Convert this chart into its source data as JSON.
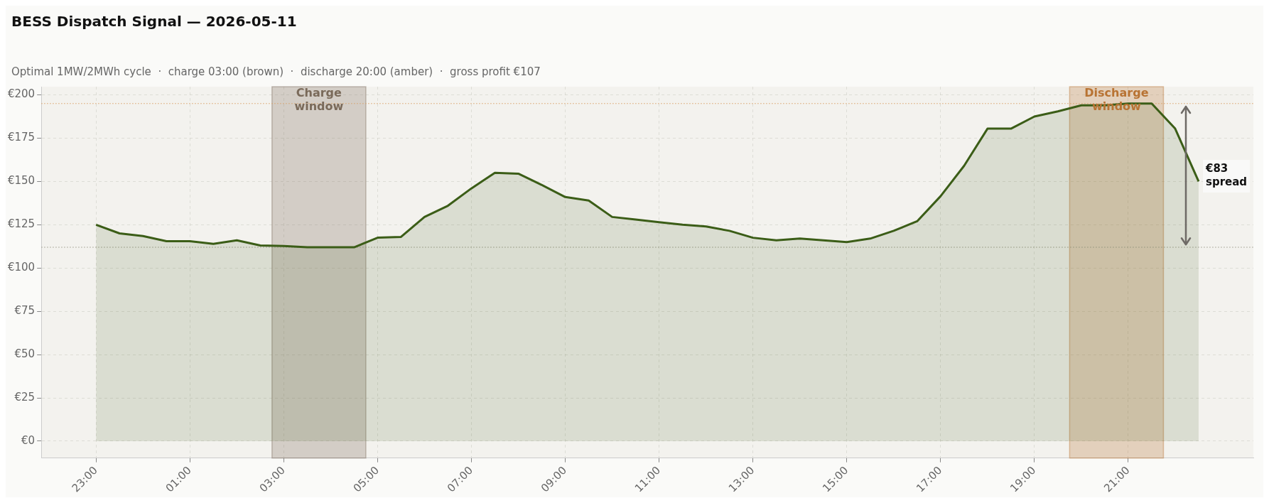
{
  "chart_data": {
    "type": "area",
    "title": "BESS Dispatch Signal — 2026-05-11",
    "subtitle": "Optimal 1MW/2MWh cycle  ·  charge 03:00 (brown)  ·  discharge 20:00 (amber)  ·  gross profit €107",
    "x": [
      "2026-05-10T23:00",
      "2026-05-10T23:30",
      "2026-05-11T00:00",
      "2026-05-11T00:30",
      "2026-05-11T01:00",
      "2026-05-11T01:30",
      "2026-05-11T02:00",
      "2026-05-11T02:30",
      "2026-05-11T03:00",
      "2026-05-11T03:30",
      "2026-05-11T04:00",
      "2026-05-11T04:30",
      "2026-05-11T05:00",
      "2026-05-11T05:30",
      "2026-05-11T06:00",
      "2026-05-11T06:30",
      "2026-05-11T07:00",
      "2026-05-11T07:30",
      "2026-05-11T08:00",
      "2026-05-11T08:30",
      "2026-05-11T09:00",
      "2026-05-11T09:30",
      "2026-05-11T10:00",
      "2026-05-11T10:30",
      "2026-05-11T11:00",
      "2026-05-11T11:30",
      "2026-05-11T12:00",
      "2026-05-11T12:30",
      "2026-05-11T13:00",
      "2026-05-11T13:30",
      "2026-05-11T14:00",
      "2026-05-11T14:30",
      "2026-05-11T15:00",
      "2026-05-11T15:30",
      "2026-05-11T16:00",
      "2026-05-11T16:30",
      "2026-05-11T17:00",
      "2026-05-11T17:30",
      "2026-05-11T18:00",
      "2026-05-11T18:30",
      "2026-05-11T19:00",
      "2026-05-11T19:30",
      "2026-05-11T20:00",
      "2026-05-11T20:30",
      "2026-05-11T21:00",
      "2026-05-11T21:30",
      "2026-05-11T22:00",
      "2026-05-11T22:30"
    ],
    "series": [
      {
        "color": "#3b5d17",
        "values": [
          125,
          120,
          118.5,
          115.5,
          115.5,
          114,
          116,
          113,
          112.7,
          112,
          112,
          112,
          117.5,
          118,
          129.5,
          136,
          146,
          155,
          154.5,
          148,
          141,
          139,
          129.5,
          128,
          126.5,
          125,
          124,
          121.5,
          117.5,
          116,
          117,
          116,
          115,
          117,
          121.5,
          127,
          141.5,
          159,
          180.5,
          180.5,
          187.5,
          190.5,
          194,
          194,
          195,
          195,
          180.5,
          150
        ]
      }
    ],
    "xlim": [
      "2026-05-10T21:50",
      "2026-05-11T23:40"
    ],
    "ylim": [
      -9.75,
      204.75
    ],
    "xticks": [
      {
        "value": "2026-05-10T23:00",
        "label": "23:00"
      },
      {
        "value": "2026-05-11T01:00",
        "label": "01:00"
      },
      {
        "value": "2026-05-11T03:00",
        "label": "03:00"
      },
      {
        "value": "2026-05-11T05:00",
        "label": "05:00"
      },
      {
        "value": "2026-05-11T07:00",
        "label": "07:00"
      },
      {
        "value": "2026-05-11T09:00",
        "label": "09:00"
      },
      {
        "value": "2026-05-11T11:00",
        "label": "11:00"
      },
      {
        "value": "2026-05-11T13:00",
        "label": "13:00"
      },
      {
        "value": "2026-05-11T15:00",
        "label": "15:00"
      },
      {
        "value": "2026-05-11T17:00",
        "label": "17:00"
      },
      {
        "value": "2026-05-11T19:00",
        "label": "19:00"
      },
      {
        "value": "2026-05-11T21:00",
        "label": "21:00"
      }
    ],
    "yticks": [
      {
        "value": 0,
        "label": "€0"
      },
      {
        "value": 25,
        "label": "€25"
      },
      {
        "value": 50,
        "label": "€50"
      },
      {
        "value": 75,
        "label": "€75"
      },
      {
        "value": 100,
        "label": "€100"
      },
      {
        "value": 125,
        "label": "€125"
      },
      {
        "value": 150,
        "label": "€150"
      },
      {
        "value": 175,
        "label": "€175"
      },
      {
        "value": 200,
        "label": "€200"
      }
    ],
    "ref_lines": [
      {
        "axis": "y",
        "value": 195,
        "color": "#d9a066",
        "line_style": "dotted"
      },
      {
        "axis": "y",
        "value": 112,
        "color": "#9a9a8a",
        "line_style": "dotted"
      }
    ],
    "bands": [
      {
        "axis": "x",
        "from": "2026-05-11T02:45",
        "to": "2026-05-11T04:45",
        "label": "Charge window",
        "color": "#7a6a5a"
      },
      {
        "axis": "x",
        "from": "2026-05-11T19:45",
        "to": "2026-05-11T21:45",
        "label": "Discharge window",
        "color": "#b87333"
      }
    ],
    "annotations": [
      "€83 spread"
    ],
    "grid": true,
    "legend": false,
    "marker": "none",
    "line_style": "solid"
  }
}
